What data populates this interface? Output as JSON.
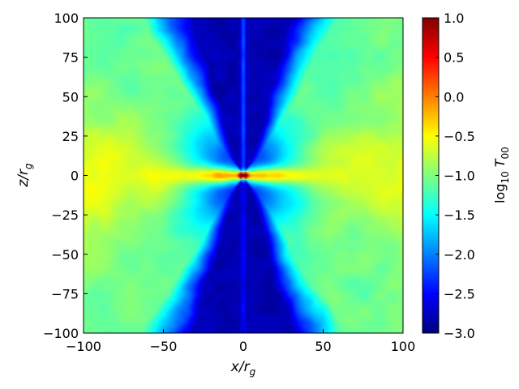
{
  "chart_data": {
    "type": "heatmap",
    "title": "",
    "x_ticks": [
      "−100",
      "−50",
      "0",
      "50",
      "100"
    ],
    "x_tick_values": [
      -100,
      -50,
      0,
      50,
      100
    ],
    "y_ticks": [
      "100",
      "75",
      "50",
      "25",
      "0",
      "−25",
      "−50",
      "−75",
      "−100"
    ],
    "y_tick_values": [
      100,
      75,
      50,
      25,
      0,
      -25,
      -50,
      -75,
      -100
    ],
    "xlim": [
      -100,
      100
    ],
    "ylim": [
      -100,
      100
    ],
    "colorbar": {
      "range": [
        -3.0,
        1.0
      ],
      "ticks": [
        "1.0",
        "0.5",
        "0.0",
        "−0.5",
        "−1.0",
        "−1.5",
        "−2.0",
        "−2.5",
        "−3.0"
      ],
      "tick_values": [
        1.0,
        0.5,
        0.0,
        -0.5,
        -1.0,
        -1.5,
        -2.0,
        -2.5,
        -3.0
      ],
      "colormap": "jet"
    },
    "field_description": {
      "background_level": -2.8,
      "disk_level": -0.6,
      "wind_level": -1.1,
      "core_level": 0.5,
      "funnel_half_opening_deg": 18
    }
  }
}
